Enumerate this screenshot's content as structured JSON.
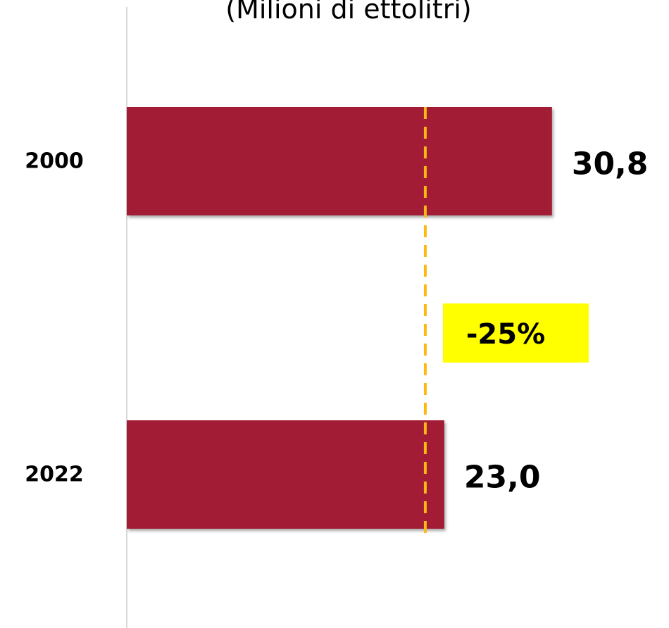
{
  "chart_data": {
    "type": "bar",
    "orientation": "horizontal",
    "title": "(Milioni di ettolitri)",
    "categories": [
      "2000",
      "2022"
    ],
    "values": [
      30.8,
      23.0
    ],
    "value_labels": [
      "30,8",
      "23,0"
    ],
    "bar_color": "#A31F34",
    "xlim": [
      0,
      38
    ],
    "grid": false,
    "reference_line": {
      "value": 23.0,
      "color": "#FDB913",
      "style": "dashed"
    },
    "annotation": {
      "text": "-25%",
      "background": "#FFFF00"
    }
  }
}
